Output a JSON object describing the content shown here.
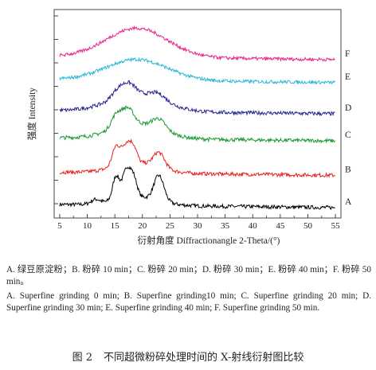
{
  "chart_data": {
    "type": "line",
    "xlabel": "衍射角度 Diffractionangle 2-Theta/(°)",
    "ylabel": "强度 Intensity",
    "xlim": [
      4,
      56
    ],
    "ylim": [
      0,
      100
    ],
    "x_ticks": [
      5,
      10,
      15,
      20,
      25,
      30,
      35,
      40,
      45,
      50,
      55
    ],
    "grid": false,
    "series": [
      {
        "name": "A",
        "color": "#000000",
        "offset": 5,
        "peaks": [
          [
            11.5,
            2.0,
            0.8
          ],
          [
            15.2,
            11,
            0.6
          ],
          [
            17.2,
            14,
            0.8
          ],
          [
            18.5,
            7,
            0.6
          ],
          [
            23.0,
            12,
            0.9
          ],
          [
            19,
            4,
            4
          ]
        ],
        "hump": 1.5,
        "noise": 0.9
      },
      {
        "name": "B",
        "color": "#e8201c",
        "offset": 20.5,
        "peaks": [
          [
            15.2,
            9,
            0.7
          ],
          [
            17.2,
            10,
            0.9
          ],
          [
            18.5,
            5,
            0.6
          ],
          [
            23.0,
            7,
            1.0
          ],
          [
            19,
            5,
            4
          ]
        ],
        "hump": 1.5,
        "noise": 0.9
      },
      {
        "name": "C",
        "color": "#1e9a32",
        "offset": 37,
        "peaks": [
          [
            15.2,
            6,
            0.9
          ],
          [
            17.3,
            8,
            1.1
          ],
          [
            23.0,
            5,
            1.2
          ],
          [
            19,
            7,
            4.5
          ]
        ],
        "hump": 1.5,
        "noise": 0.9
      },
      {
        "name": "D",
        "color": "#24238c",
        "offset": 50,
        "peaks": [
          [
            15.3,
            3,
            1.0
          ],
          [
            17.4,
            6,
            1.3
          ],
          [
            22.8,
            3,
            1.4
          ],
          [
            19,
            8,
            5
          ]
        ],
        "hump": 1.5,
        "noise": 0.9
      },
      {
        "name": "E",
        "color": "#29b7d9",
        "offset": 65,
        "peaks": [
          [
            19,
            10,
            5.5
          ]
        ],
        "hump": 1.5,
        "noise": 0.8
      },
      {
        "name": "F",
        "color": "#e8268c",
        "offset": 76,
        "peaks": [
          [
            19,
            14,
            5.5
          ]
        ],
        "hump": 1.5,
        "noise": 0.8
      }
    ]
  },
  "caption": {
    "zh": "A. 绿豆原淀粉；B. 粉碎 10 min；C. 粉碎 20 min；D. 粉碎 30 min；E. 粉碎 40 min；F. 粉碎 50 min。",
    "en": "A. Superfine grinding 0 min; B. Superfine grinding10 min; C. Superfine grinding 20 min; D. Superfine grinding 30 min; E. Superfine grinding 40 min; F. Superfine grinding 50 min."
  },
  "figure_title": {
    "number": "图 2",
    "text": "不同超微粉碎处理时间的 X-射线衍射图比较"
  }
}
